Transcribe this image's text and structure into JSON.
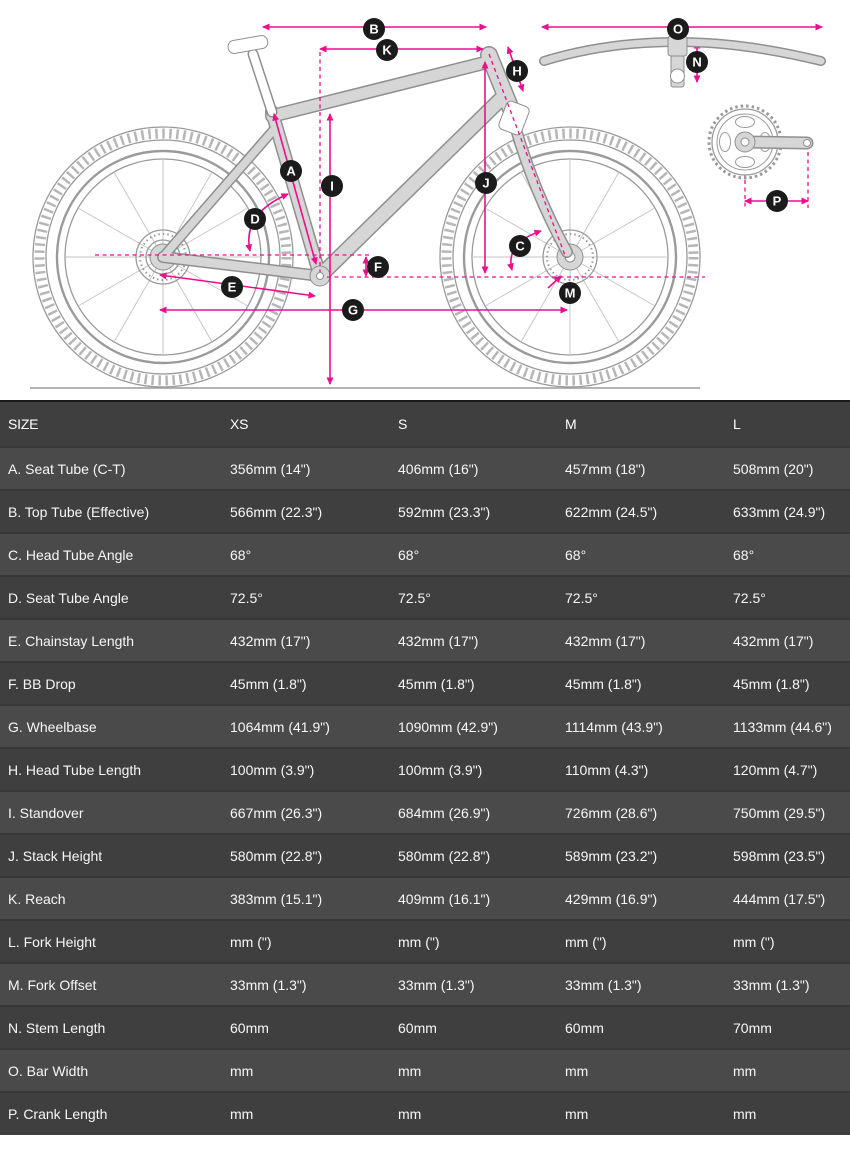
{
  "diagram": {
    "labels": [
      "A",
      "B",
      "C",
      "D",
      "E",
      "F",
      "G",
      "H",
      "I",
      "J",
      "K",
      "M",
      "N",
      "O",
      "P"
    ]
  },
  "table": {
    "columns": [
      "SIZE",
      "XS",
      "S",
      "M",
      "L"
    ],
    "rows": [
      {
        "label": "A. Seat Tube (C-T)",
        "values": [
          "356mm (14\")",
          "406mm (16\")",
          "457mm (18\")",
          "508mm (20\")"
        ]
      },
      {
        "label": "B. Top Tube (Effective)",
        "values": [
          "566mm (22.3\")",
          "592mm (23.3\")",
          "622mm (24.5\")",
          "633mm (24.9\")"
        ]
      },
      {
        "label": "C. Head Tube Angle",
        "values": [
          "68°",
          "68°",
          "68°",
          "68°"
        ]
      },
      {
        "label": "D. Seat Tube Angle",
        "values": [
          "72.5°",
          "72.5°",
          "72.5°",
          "72.5°"
        ]
      },
      {
        "label": "E. Chainstay Length",
        "values": [
          "432mm (17\")",
          "432mm (17\")",
          "432mm (17\")",
          "432mm (17\")"
        ]
      },
      {
        "label": "F. BB Drop",
        "values": [
          "45mm (1.8\")",
          "45mm (1.8\")",
          "45mm (1.8\")",
          "45mm (1.8\")"
        ]
      },
      {
        "label": "G. Wheelbase",
        "values": [
          "1064mm (41.9\")",
          "1090mm (42.9\")",
          "1114mm (43.9\")",
          "1133mm (44.6\")"
        ]
      },
      {
        "label": "H. Head Tube Length",
        "values": [
          "100mm (3.9\")",
          "100mm (3.9\")",
          "110mm (4.3\")",
          "120mm (4.7\")"
        ]
      },
      {
        "label": "I. Standover",
        "values": [
          "667mm (26.3\")",
          "684mm (26.9\")",
          "726mm (28.6\")",
          "750mm (29.5\")"
        ]
      },
      {
        "label": "J. Stack Height",
        "values": [
          "580mm (22.8\")",
          "580mm (22.8\")",
          "589mm (23.2\")",
          "598mm (23.5\")"
        ]
      },
      {
        "label": "K. Reach",
        "values": [
          "383mm (15.1\")",
          "409mm (16.1\")",
          "429mm (16.9\")",
          "444mm (17.5\")"
        ]
      },
      {
        "label": "L. Fork Height",
        "values": [
          "mm (\")",
          "mm (\")",
          "mm (\")",
          "mm (\")"
        ]
      },
      {
        "label": "M. Fork Offset",
        "values": [
          "33mm (1.3\")",
          "33mm (1.3\")",
          "33mm (1.3\")",
          "33mm (1.3\")"
        ]
      },
      {
        "label": "N. Stem Length",
        "values": [
          "60mm",
          "60mm",
          "60mm",
          "70mm"
        ]
      },
      {
        "label": "O. Bar Width",
        "values": [
          "mm",
          "mm",
          "mm",
          "mm"
        ]
      },
      {
        "label": "P. Crank Length",
        "values": [
          "mm",
          "mm",
          "mm",
          "mm"
        ]
      }
    ]
  },
  "colors": {
    "accent": "#ec0f8d",
    "badge": "#1b1b1b",
    "frame": "#d6d6d6",
    "row_light": "#4a4a4a",
    "row_dark": "#3f3f3f"
  }
}
